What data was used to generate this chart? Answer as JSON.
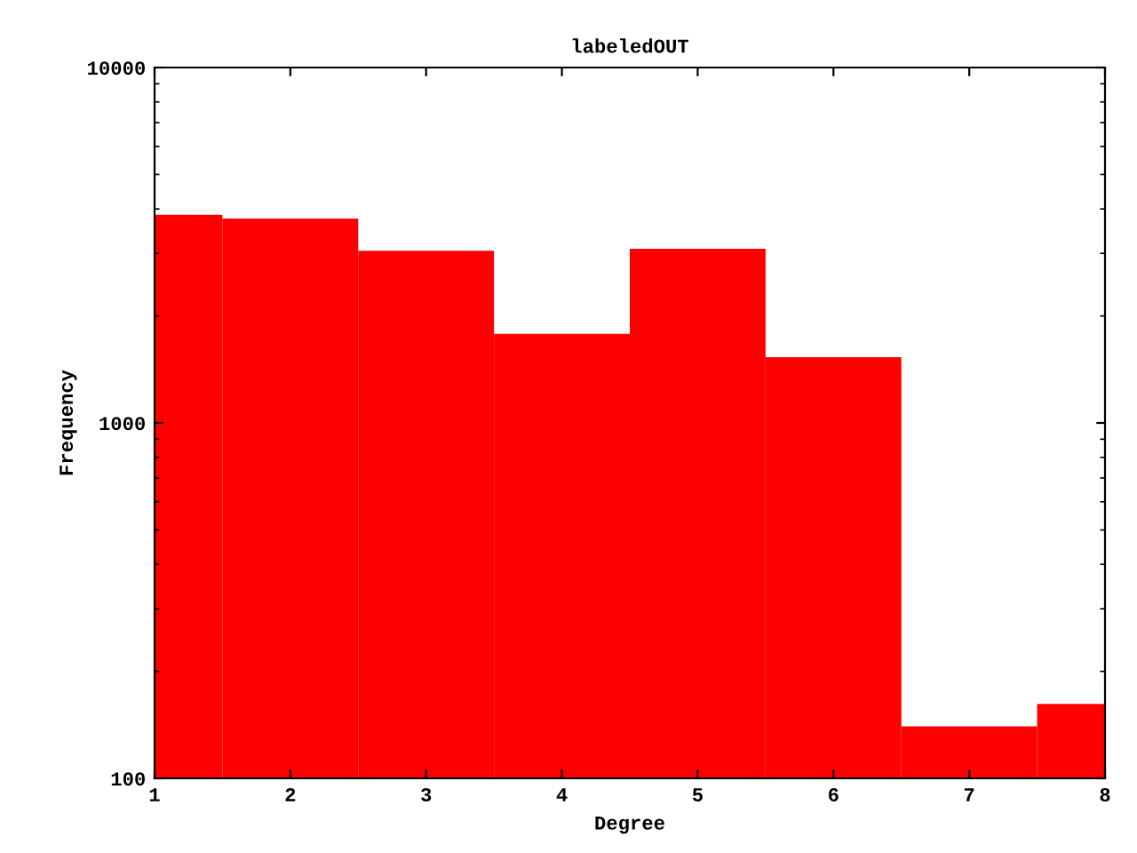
{
  "chart_data": {
    "type": "bar",
    "title": "labeledOUT",
    "xlabel": "Degree",
    "ylabel": "Frequency",
    "x": [
      1,
      2,
      3,
      4,
      5,
      6,
      7,
      8
    ],
    "values": [
      3850,
      3760,
      3050,
      1780,
      3090,
      1530,
      140,
      162
    ],
    "color": "#ff0000",
    "log": "y",
    "xlim": [
      1,
      8
    ],
    "xticks": [
      1,
      2,
      3,
      4,
      5,
      6,
      7,
      8
    ],
    "ylim": [
      100,
      10000
    ],
    "yticks": [
      100,
      1000,
      10000
    ],
    "grid": false,
    "legend": false
  }
}
